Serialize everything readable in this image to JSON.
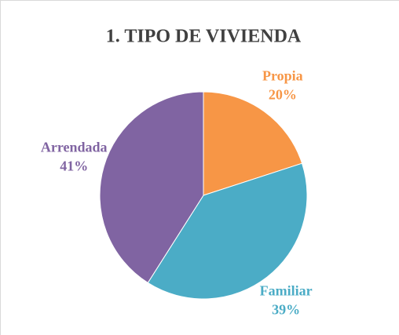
{
  "chart_data": {
    "type": "pie",
    "title": "1. TIPO DE VIVIENDA",
    "categories": [
      "Propia",
      "Familiar",
      "Arrendada"
    ],
    "values": [
      20,
      39,
      41
    ],
    "value_labels": [
      "20%",
      "39%",
      "41%"
    ],
    "colors": [
      "#f79646",
      "#4bacc6",
      "#8064a2"
    ]
  }
}
